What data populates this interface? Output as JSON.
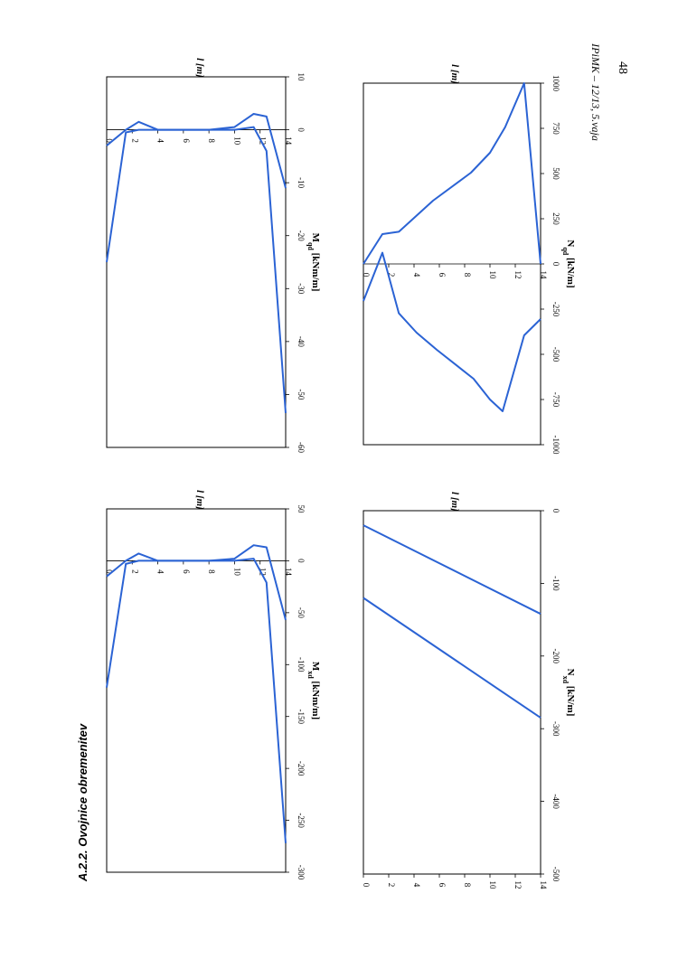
{
  "page": {
    "header": "IPiMK – 12/13, 5.vaja",
    "page_number": "48",
    "section_title": "A.2.2. Ovojnice obremenitev"
  },
  "chart_data": [
    {
      "id": "mqd",
      "type": "line",
      "ylabel": "l [m]",
      "xlabel": "Mqd [kNm/m]",
      "xlim": [
        -60,
        10
      ],
      "ylim": [
        0,
        14
      ],
      "xticks": [
        10,
        0,
        -10,
        -20,
        -30,
        -40,
        -50,
        -60
      ],
      "yticks": [
        0,
        2,
        4,
        6,
        8,
        10,
        12,
        14
      ],
      "series": [
        {
          "points": [
            [
              -25,
              0
            ],
            [
              -0.5,
              1.5
            ],
            [
              0,
              2.5
            ],
            [
              0,
              4
            ],
            [
              0,
              6
            ],
            [
              0,
              8
            ],
            [
              0,
              10
            ],
            [
              0.5,
              11.5
            ],
            [
              -4,
              12.5
            ],
            [
              -53.5,
              14
            ]
          ]
        },
        {
          "points": [
            [
              -3,
              0
            ],
            [
              0,
              1.5
            ],
            [
              1.5,
              2.5
            ],
            [
              0,
              4
            ],
            [
              0,
              6
            ],
            [
              0,
              8
            ],
            [
              0.5,
              10
            ],
            [
              3,
              11.5
            ],
            [
              2.5,
              12.5
            ],
            [
              -11,
              14
            ]
          ]
        }
      ]
    },
    {
      "id": "mxd",
      "type": "line",
      "ylabel": "l [m]",
      "xlabel": "Mxd [kNm/m]",
      "xlim": [
        -300,
        50
      ],
      "ylim": [
        0,
        14
      ],
      "xticks": [
        50,
        0,
        -50,
        -100,
        -150,
        -200,
        -250,
        -300
      ],
      "yticks": [
        0,
        2,
        4,
        6,
        8,
        10,
        12,
        14
      ],
      "series": [
        {
          "points": [
            [
              -122,
              0
            ],
            [
              -3,
              1.5
            ],
            [
              0,
              2.5
            ],
            [
              0,
              4
            ],
            [
              0,
              6
            ],
            [
              0,
              8
            ],
            [
              0,
              10
            ],
            [
              2,
              11.5
            ],
            [
              -21,
              12.5
            ],
            [
              -272,
              14
            ]
          ]
        },
        {
          "points": [
            [
              -15,
              0
            ],
            [
              0,
              1.5
            ],
            [
              7,
              2.5
            ],
            [
              0,
              4
            ],
            [
              0,
              6
            ],
            [
              0,
              8
            ],
            [
              2,
              10
            ],
            [
              15,
              11.5
            ],
            [
              13,
              12.5
            ],
            [
              -57,
              14
            ]
          ]
        }
      ]
    },
    {
      "id": "nqd",
      "type": "line",
      "ylabel": "l [m]",
      "xlabel": "Nqd [kN/m]",
      "xlim": [
        -1000,
        1000
      ],
      "ylim": [
        0,
        14
      ],
      "xticks": [
        1000,
        750,
        500,
        250,
        0,
        -250,
        -500,
        -750,
        -1000
      ],
      "yticks": [
        0,
        2,
        4,
        6,
        8,
        10,
        12,
        14
      ],
      "series": [
        {
          "points": [
            [
              0,
              0
            ],
            [
              165,
              1.5
            ],
            [
              178,
              2.8
            ],
            [
              350,
              5.5
            ],
            [
              505,
              8.5
            ],
            [
              615,
              10
            ],
            [
              757,
              11.2
            ],
            [
              1000,
              12.7
            ],
            [
              0,
              14
            ]
          ]
        },
        {
          "points": [
            [
              -205,
              0
            ],
            [
              62,
              1.5
            ],
            [
              -273,
              2.8
            ],
            [
              -380,
              4.2
            ],
            [
              -475,
              5.8
            ],
            [
              -635,
              8.7
            ],
            [
              -750,
              10
            ],
            [
              -815,
              11
            ],
            [
              -395,
              12.7
            ],
            [
              -305,
              14
            ]
          ]
        }
      ]
    },
    {
      "id": "nxd",
      "type": "line",
      "ylabel": "l [m]",
      "xlabel": "Nxd [kN/m]",
      "xlim": [
        -500,
        0
      ],
      "ylim": [
        0,
        14
      ],
      "xticks": [
        0,
        -100,
        -200,
        -300,
        -400,
        -500
      ],
      "yticks": [
        0,
        2,
        4,
        6,
        8,
        10,
        12,
        14
      ],
      "series": [
        {
          "points": [
            [
              -20,
              0
            ],
            [
              -142,
              14
            ]
          ]
        },
        {
          "points": [
            [
              -120,
              0
            ],
            [
              -285,
              14
            ]
          ]
        }
      ]
    }
  ]
}
